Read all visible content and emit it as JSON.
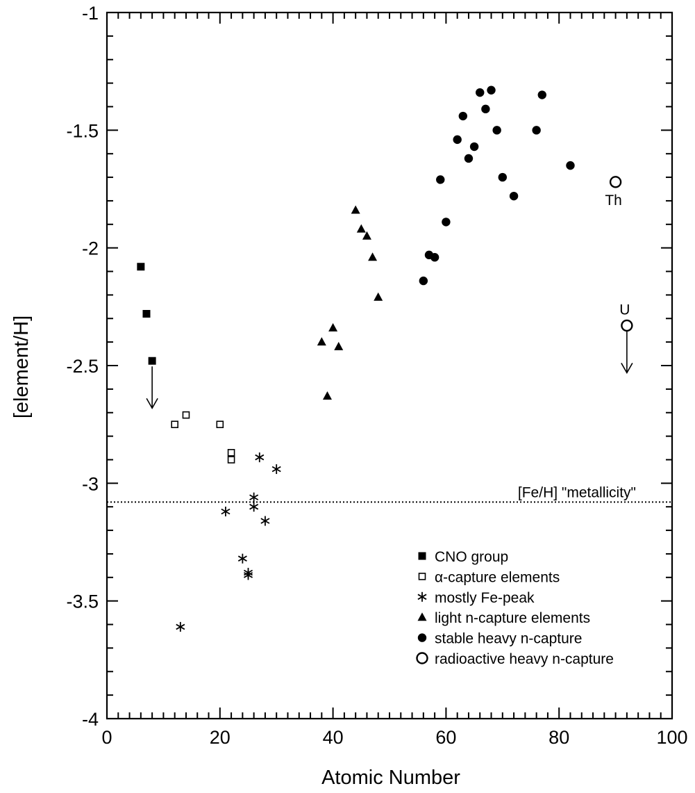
{
  "chart_data": {
    "type": "scatter",
    "title": "",
    "xlabel": "Atomic Number",
    "ylabel": "[element/H]",
    "xlim": [
      0,
      100
    ],
    "ylim": [
      -4,
      -1
    ],
    "x_ticks": [
      0,
      20,
      40,
      60,
      80,
      100
    ],
    "x_tick_labels": [
      "0",
      "20",
      "40",
      "60",
      "80",
      "100"
    ],
    "y_ticks": [
      -1,
      -1.5,
      -2,
      -2.5,
      -3,
      -3.5,
      -4
    ],
    "y_tick_labels": [
      "-1",
      "-1.5",
      "-2",
      "-2.5",
      "-3",
      "-3.5",
      "-4"
    ],
    "grid": false,
    "legend_position": "bottom-right",
    "reference_line": {
      "label": "[Fe/H] \"metallicity\"",
      "y": -3.08,
      "style": "dotted"
    },
    "series": [
      {
        "name": "CNO group",
        "marker": "filled-square",
        "points": [
          {
            "x": 6,
            "y": -2.08
          },
          {
            "x": 7,
            "y": -2.28
          },
          {
            "x": 8,
            "y": -2.48,
            "upper_limit": true
          }
        ]
      },
      {
        "name": "α-capture elements",
        "marker": "open-square",
        "points": [
          {
            "x": 12,
            "y": -2.75
          },
          {
            "x": 14,
            "y": -2.71
          },
          {
            "x": 20,
            "y": -2.75
          },
          {
            "x": 22,
            "y": -2.87
          },
          {
            "x": 22,
            "y": -2.9
          }
        ]
      },
      {
        "name": "mostly Fe-peak",
        "marker": "asterisk",
        "points": [
          {
            "x": 13,
            "y": -3.61
          },
          {
            "x": 21,
            "y": -3.12
          },
          {
            "x": 24,
            "y": -3.32
          },
          {
            "x": 25,
            "y": -3.38
          },
          {
            "x": 25,
            "y": -3.39
          },
          {
            "x": 26,
            "y": -3.06
          },
          {
            "x": 26,
            "y": -3.1
          },
          {
            "x": 27,
            "y": -2.89
          },
          {
            "x": 28,
            "y": -3.16
          },
          {
            "x": 30,
            "y": -2.94
          }
        ]
      },
      {
        "name": "light n-capture elements",
        "marker": "filled-triangle",
        "points": [
          {
            "x": 38,
            "y": -2.4
          },
          {
            "x": 39,
            "y": -2.63
          },
          {
            "x": 40,
            "y": -2.34
          },
          {
            "x": 41,
            "y": -2.42
          },
          {
            "x": 44,
            "y": -1.84
          },
          {
            "x": 45,
            "y": -1.92
          },
          {
            "x": 46,
            "y": -1.95
          },
          {
            "x": 47,
            "y": -2.04
          },
          {
            "x": 48,
            "y": -2.21
          }
        ]
      },
      {
        "name": "stable heavy n-capture",
        "marker": "filled-circle",
        "points": [
          {
            "x": 56,
            "y": -2.14
          },
          {
            "x": 57,
            "y": -2.03
          },
          {
            "x": 58,
            "y": -2.04
          },
          {
            "x": 59,
            "y": -1.71
          },
          {
            "x": 60,
            "y": -1.89
          },
          {
            "x": 62,
            "y": -1.54
          },
          {
            "x": 63,
            "y": -1.44
          },
          {
            "x": 64,
            "y": -1.62
          },
          {
            "x": 65,
            "y": -1.57
          },
          {
            "x": 66,
            "y": -1.34
          },
          {
            "x": 67,
            "y": -1.41
          },
          {
            "x": 68,
            "y": -1.33
          },
          {
            "x": 69,
            "y": -1.5
          },
          {
            "x": 70,
            "y": -1.7
          },
          {
            "x": 72,
            "y": -1.78
          },
          {
            "x": 76,
            "y": -1.5
          },
          {
            "x": 77,
            "y": -1.35
          },
          {
            "x": 82,
            "y": -1.65
          }
        ]
      },
      {
        "name": "radioactive heavy n-capture",
        "marker": "open-circle",
        "points": [
          {
            "x": 90,
            "y": -1.72,
            "label": "Th"
          },
          {
            "x": 92,
            "y": -2.33,
            "label": "U",
            "upper_limit": true
          }
        ]
      }
    ]
  }
}
